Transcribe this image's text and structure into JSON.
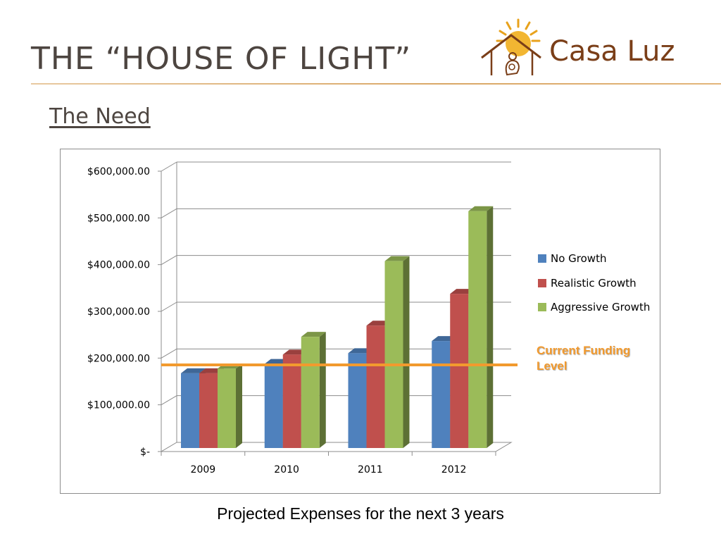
{
  "slide": {
    "title": "THE “HOUSE OF LIGHT”",
    "subtitle": "The Need",
    "caption": "Projected Expenses for the next 3 years",
    "logo_text": "Casa Luz"
  },
  "chart_data": {
    "type": "bar",
    "categories": [
      "2009",
      "2010",
      "2011",
      "2012"
    ],
    "series": [
      {
        "name": "No Growth",
        "color": "#4f81bd",
        "values": [
          160000,
          180000,
          203000,
          229000
        ]
      },
      {
        "name": "Realistic Growth",
        "color": "#c0504d",
        "values": [
          160000,
          200000,
          262000,
          330000
        ]
      },
      {
        "name": "Aggressive Growth",
        "color": "#9bbb59",
        "values": [
          170000,
          238000,
          400000,
          507000
        ]
      }
    ],
    "y_ticks": [
      "$-",
      "$100,000.00",
      "$200,000.00",
      "$300,000.00",
      "$400,000.00",
      "$500,000.00",
      "$600,000.00"
    ],
    "ylim": [
      0,
      600000
    ],
    "grid": true,
    "legend_position": "right",
    "reference_line": {
      "label": "Current Funding Level",
      "value": 190000,
      "color": "#f29a2e"
    }
  }
}
